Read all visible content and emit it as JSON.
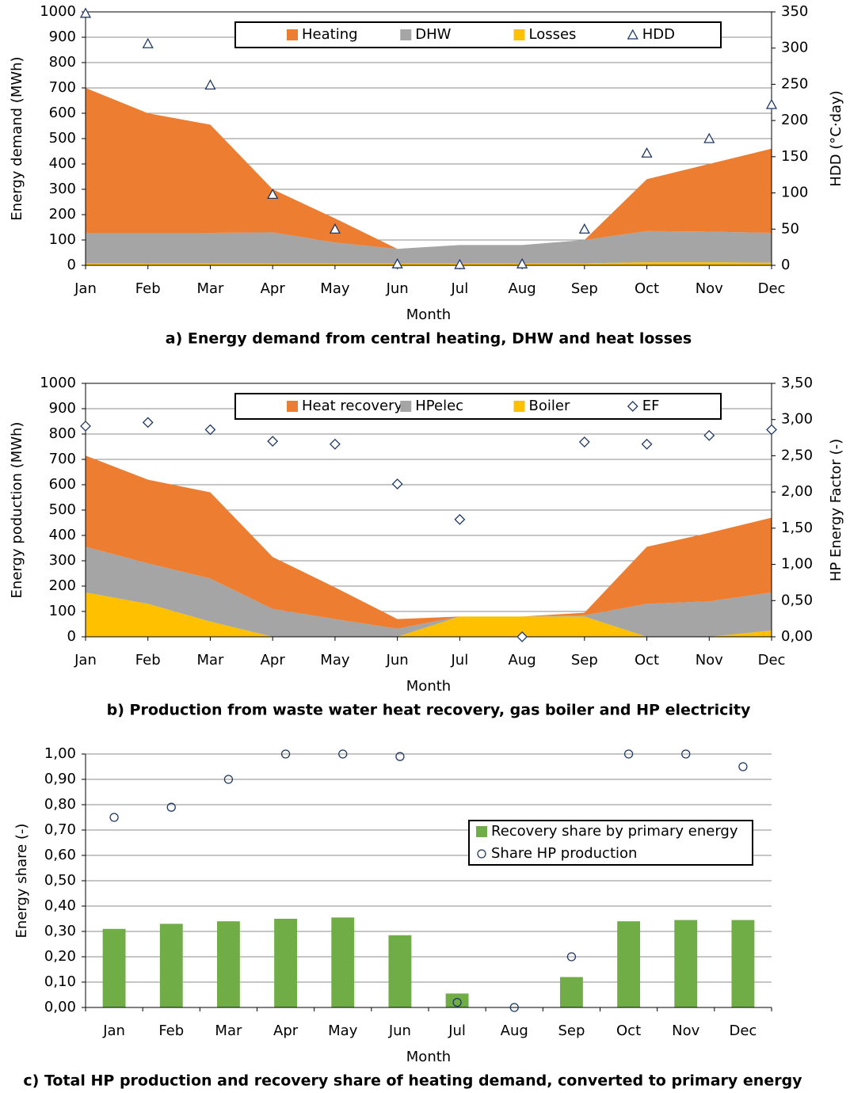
{
  "chart_data": [
    {
      "type": "area",
      "ylabel": "Energy demand (MWh)",
      "y2label": "HDD (°C·day)",
      "xlabel": "Month",
      "caption": "a) Energy demand from central heating, DHW and heat losses",
      "categories": [
        "Jan",
        "Feb",
        "Mar",
        "Apr",
        "May",
        "Jun",
        "Jul",
        "Aug",
        "Sep",
        "Oct",
        "Nov",
        "Dec"
      ],
      "series": [
        {
          "name": "Heating",
          "type": "area",
          "color": "#ED7D31",
          "values": [
            572,
            472,
            427,
            170,
            95,
            0,
            0,
            0,
            0,
            205,
            267,
            332
          ]
        },
        {
          "name": "DHW",
          "type": "area",
          "color": "#A5A5A5",
          "values": [
            120,
            120,
            120,
            122,
            82,
            57,
            72,
            72,
            92,
            123,
            121,
            118
          ]
        },
        {
          "name": "Losses",
          "type": "area",
          "color": "#FFC000",
          "values": [
            8,
            8,
            8,
            8,
            8,
            8,
            8,
            8,
            8,
            12,
            12,
            10
          ]
        },
        {
          "name": "HDD",
          "type": "scatter",
          "marker": "triangle",
          "axis": "y2",
          "color": "#1F3864",
          "values": [
            348,
            306,
            249,
            98,
            50,
            2,
            1,
            2,
            50,
            155,
            175,
            222
          ]
        }
      ],
      "ylim": [
        0,
        1000
      ],
      "yticks": [
        0,
        100,
        200,
        300,
        400,
        500,
        600,
        700,
        800,
        900,
        1000
      ],
      "y2lim": [
        0,
        350
      ],
      "y2ticks": [
        0,
        50,
        100,
        150,
        200,
        250,
        300,
        350
      ],
      "grid": true,
      "legend": "top"
    },
    {
      "type": "area",
      "ylabel": "Energy poduction (MWh)",
      "y2label": "HP Energy Factor (-)",
      "xlabel": "Month",
      "caption": "b) Production from waste water heat recovery, gas boiler and HP electricity",
      "categories": [
        "Jan",
        "Feb",
        "Mar",
        "Apr",
        "May",
        "Jun",
        "Jul",
        "Aug",
        "Sep",
        "Oct",
        "Nov",
        "Dec"
      ],
      "series": [
        {
          "name": "Heat recovery",
          "type": "area",
          "color": "#ED7D31",
          "values": [
            360,
            330,
            340,
            205,
            125,
            38,
            0,
            0,
            10,
            225,
            270,
            295
          ]
        },
        {
          "name": "HPelec",
          "type": "area",
          "color": "#A5A5A5",
          "values": [
            180,
            160,
            170,
            110,
            70,
            32,
            0,
            0,
            5,
            130,
            140,
            150
          ]
        },
        {
          "name": "Boiler",
          "type": "area",
          "color": "#FFC000",
          "values": [
            175,
            130,
            60,
            0,
            0,
            0,
            80,
            80,
            80,
            0,
            0,
            25
          ]
        },
        {
          "name": "EF",
          "type": "scatter",
          "marker": "diamond",
          "axis": "y2",
          "color": "#1F3864",
          "values": [
            2.91,
            2.96,
            2.86,
            2.7,
            2.66,
            2.11,
            1.62,
            0,
            2.69,
            2.66,
            2.78,
            2.86
          ]
        }
      ],
      "ylim": [
        0,
        1000
      ],
      "yticks": [
        0,
        100,
        200,
        300,
        400,
        500,
        600,
        700,
        800,
        900,
        1000
      ],
      "y2lim": [
        0,
        3.5
      ],
      "y2ticks": [
        {
          "value": 0,
          "label": "0,00"
        },
        {
          "value": 0.5,
          "label": "0,50"
        },
        {
          "value": 1,
          "label": "1,00"
        },
        {
          "value": 1.5,
          "label": "1,50"
        },
        {
          "value": 2,
          "label": "2,00"
        },
        {
          "value": 2.5,
          "label": "2,50"
        },
        {
          "value": 3,
          "label": "3,00"
        },
        {
          "value": 3.5,
          "label": "3,50"
        }
      ],
      "grid": true,
      "legend": "top"
    },
    {
      "type": "bar",
      "ylabel": "Energy share (-)",
      "xlabel": "Month",
      "caption": "c) Total HP production and recovery share of heating demand, converted to primary energy",
      "categories": [
        "Jan",
        "Feb",
        "Mar",
        "Apr",
        "May",
        "Jun",
        "Jul",
        "Aug",
        "Sep",
        "Oct",
        "Nov",
        "Dec"
      ],
      "series": [
        {
          "name": "Recovery share by primary energy",
          "type": "bar",
          "color": "#70AD47",
          "values": [
            0.31,
            0.33,
            0.34,
            0.35,
            0.355,
            0.285,
            0.055,
            0,
            0.12,
            0.34,
            0.345,
            0.345
          ]
        },
        {
          "name": "Share HP production",
          "type": "scatter",
          "marker": "circle",
          "color": "#1F3864",
          "values": [
            0.75,
            0.79,
            0.9,
            1,
            1,
            0.99,
            0.02,
            0,
            0.2,
            1,
            1,
            0.95
          ]
        }
      ],
      "ylim": [
        0,
        1
      ],
      "yticks": [
        {
          "value": 0,
          "label": "0,00"
        },
        {
          "value": 0.1,
          "label": "0,10"
        },
        {
          "value": 0.2,
          "label": "0,20"
        },
        {
          "value": 0.3,
          "label": "0,30"
        },
        {
          "value": 0.4,
          "label": "0,40"
        },
        {
          "value": 0.5,
          "label": "0,50"
        },
        {
          "value": 0.6,
          "label": "0,60"
        },
        {
          "value": 0.7,
          "label": "0,70"
        },
        {
          "value": 0.8,
          "label": "0,80"
        },
        {
          "value": 0.9,
          "label": "0,90"
        },
        {
          "value": 1,
          "label": "1,00"
        }
      ],
      "grid": true,
      "legend": "right"
    }
  ]
}
